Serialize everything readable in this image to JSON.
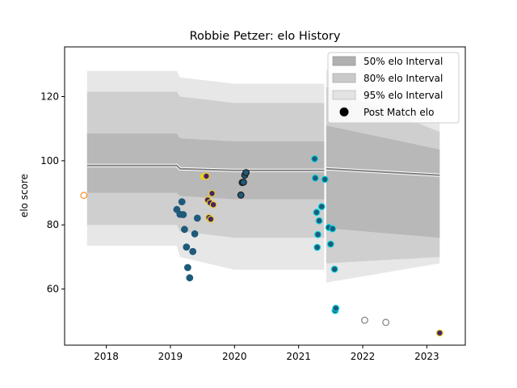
{
  "chart_data": {
    "type": "scatter",
    "title": "Robbie Petzer: elo History",
    "xlabel": "",
    "ylabel": "elo score",
    "xlim": [
      2017.35,
      2023.6
    ],
    "ylim": [
      42.5,
      135.5
    ],
    "xticks": [
      {
        "value": 2018,
        "label": "2018"
      },
      {
        "value": 2019,
        "label": "2019"
      },
      {
        "value": 2020,
        "label": "2020"
      },
      {
        "value": 2021,
        "label": "2021"
      },
      {
        "value": 2022,
        "label": "2022"
      },
      {
        "value": 2023,
        "label": "2023"
      }
    ],
    "yticks": [
      {
        "value": 60,
        "label": "60"
      },
      {
        "value": 80,
        "label": "80"
      },
      {
        "value": 100,
        "label": "100"
      },
      {
        "value": 120,
        "label": "120"
      }
    ],
    "grid": false,
    "legend": {
      "placement": "top-right",
      "entries": [
        {
          "label": "50% elo Interval",
          "color": "#b0b0b0"
        },
        {
          "label": "80% elo Interval",
          "color": "#c9c9c9"
        },
        {
          "label": "95% elo Interval",
          "color": "#e3e3e3"
        },
        {
          "label": "Post Match elo",
          "color": "#000000"
        }
      ]
    },
    "colors": {
      "band_50": "#b0b0b0",
      "band_80": "#c9c9c9",
      "band_95": "#e3e3e3",
      "mean_line": "#808080",
      "point_fill": "#1f5a7a",
      "point_fill_purple": "#4a2466",
      "edge_cyan": "#00d5e0",
      "edge_yellow": "#e8d020",
      "edge_dark": "#1a1a1a",
      "edge_orange": "#ff8c1a",
      "edge_gray": "#808080"
    },
    "band_x": [
      2017.7,
      2019.1,
      2019.15,
      2020.0,
      2021.4,
      2021.43,
      2023.2
    ],
    "band_series": [
      {
        "segment": 1,
        "x": [
          2017.7,
          2019.1,
          2019.15,
          2020.0,
          2021.4
        ],
        "mean": [
          98.5,
          98.5,
          97.5,
          97.0,
          97.0
        ],
        "q50_low": [
          90,
          90,
          89,
          88,
          88
        ],
        "q50_high": [
          108.5,
          108.5,
          107,
          106,
          106
        ],
        "q80_low": [
          80,
          80,
          78,
          76,
          76
        ],
        "q80_high": [
          121.5,
          121.5,
          120,
          118,
          118
        ],
        "q95_low": [
          73.5,
          73.5,
          70,
          66,
          66
        ],
        "q95_high": [
          128,
          128,
          126,
          124,
          124
        ]
      },
      {
        "segment": 2,
        "x": [
          2021.43,
          2023.2
        ],
        "mean": [
          97.5,
          95.5
        ],
        "q50_low": [
          79,
          76
        ],
        "q50_high": [
          111,
          103.5
        ],
        "q80_low": [
          68,
          70
        ],
        "q80_high": [
          123,
          109
        ],
        "q95_low": [
          62,
          68
        ],
        "q95_high": [
          128.5,
          112.5
        ]
      }
    ],
    "points": [
      {
        "x": 2017.65,
        "y": 89.2,
        "fill": "#ffffff",
        "edge": "#ff8c1a"
      },
      {
        "x": 2019.1,
        "y": 84.8,
        "fill": "#1f5a7a",
        "edge": "#1f5a7a"
      },
      {
        "x": 2019.15,
        "y": 83.3,
        "fill": "#1f5a7a",
        "edge": "#1f5a7a"
      },
      {
        "x": 2019.18,
        "y": 87.2,
        "fill": "#1f5a7a",
        "edge": "#1f5a7a"
      },
      {
        "x": 2019.2,
        "y": 83.2,
        "fill": "#1f5a7a",
        "edge": "#1f5a7a"
      },
      {
        "x": 2019.22,
        "y": 78.6,
        "fill": "#1f5a7a",
        "edge": "#1f5a7a"
      },
      {
        "x": 2019.25,
        "y": 73.1,
        "fill": "#1f5a7a",
        "edge": "#1f5a7a"
      },
      {
        "x": 2019.27,
        "y": 66.7,
        "fill": "#1f5a7a",
        "edge": "#1f5a7a"
      },
      {
        "x": 2019.3,
        "y": 63.5,
        "fill": "#1f5a7a",
        "edge": "#1f5a7a"
      },
      {
        "x": 2019.35,
        "y": 71.7,
        "fill": "#1f5a7a",
        "edge": "#1f5a7a"
      },
      {
        "x": 2019.38,
        "y": 77.2,
        "fill": "#1f5a7a",
        "edge": "#1f5a7a"
      },
      {
        "x": 2019.42,
        "y": 82.1,
        "fill": "#1f5a7a",
        "edge": "#1f5a7a"
      },
      {
        "x": 2019.52,
        "y": 95.1,
        "fill": "#e8d020",
        "edge": "#e8d020"
      },
      {
        "x": 2019.56,
        "y": 95.2,
        "fill": "#4a2466",
        "edge": "#e8d020"
      },
      {
        "x": 2019.58,
        "y": 87.8,
        "fill": "#4a2466",
        "edge": "#e8d020"
      },
      {
        "x": 2019.6,
        "y": 82.3,
        "fill": "#4a2466",
        "edge": "#e8d020"
      },
      {
        "x": 2019.62,
        "y": 86.9,
        "fill": "#4a2466",
        "edge": "#e8d020"
      },
      {
        "x": 2019.63,
        "y": 81.8,
        "fill": "#4a2466",
        "edge": "#e8d020"
      },
      {
        "x": 2019.65,
        "y": 89.8,
        "fill": "#4a2466",
        "edge": "#e8d020"
      },
      {
        "x": 2019.67,
        "y": 86.3,
        "fill": "#4a2466",
        "edge": "#e8d020"
      },
      {
        "x": 2020.1,
        "y": 89.3,
        "fill": "#1f5a7a",
        "edge": "#1a1a1a"
      },
      {
        "x": 2020.12,
        "y": 93.2,
        "fill": "#1f5a7a",
        "edge": "#1a1a1a"
      },
      {
        "x": 2020.14,
        "y": 93.3,
        "fill": "#1f5a7a",
        "edge": "#1a1a1a"
      },
      {
        "x": 2020.16,
        "y": 95.5,
        "fill": "#1f5a7a",
        "edge": "#1a1a1a"
      },
      {
        "x": 2020.18,
        "y": 96.3,
        "fill": "#1f5a7a",
        "edge": "#1a1a1a"
      },
      {
        "x": 2021.25,
        "y": 100.6,
        "fill": "#1f5a7a",
        "edge": "#00d5e0"
      },
      {
        "x": 2021.26,
        "y": 94.6,
        "fill": "#1f5a7a",
        "edge": "#00d5e0"
      },
      {
        "x": 2021.28,
        "y": 83.9,
        "fill": "#1f5a7a",
        "edge": "#00d5e0"
      },
      {
        "x": 2021.29,
        "y": 73.0,
        "fill": "#1f5a7a",
        "edge": "#00d5e0"
      },
      {
        "x": 2021.3,
        "y": 77.0,
        "fill": "#1f5a7a",
        "edge": "#00d5e0"
      },
      {
        "x": 2021.32,
        "y": 81.3,
        "fill": "#1f5a7a",
        "edge": "#00d5e0"
      },
      {
        "x": 2021.36,
        "y": 85.7,
        "fill": "#1f5a7a",
        "edge": "#00d5e0"
      },
      {
        "x": 2021.41,
        "y": 94.2,
        "fill": "#1f5a7a",
        "edge": "#00d5e0"
      },
      {
        "x": 2021.47,
        "y": 79.2,
        "fill": "#1f5a7a",
        "edge": "#00d5e0"
      },
      {
        "x": 2021.5,
        "y": 74.0,
        "fill": "#1f5a7a",
        "edge": "#00d5e0"
      },
      {
        "x": 2021.53,
        "y": 78.8,
        "fill": "#1f5a7a",
        "edge": "#00d5e0"
      },
      {
        "x": 2021.56,
        "y": 66.2,
        "fill": "#1f5a7a",
        "edge": "#00d5e0"
      },
      {
        "x": 2021.57,
        "y": 53.3,
        "fill": "#1f5a7a",
        "edge": "#00d5e0"
      },
      {
        "x": 2021.58,
        "y": 54.0,
        "fill": "#1f5a7a",
        "edge": "#00d5e0"
      },
      {
        "x": 2022.03,
        "y": 50.3,
        "fill": "#ffffff",
        "edge": "#808080"
      },
      {
        "x": 2022.36,
        "y": 49.6,
        "fill": "#ffffff",
        "edge": "#808080"
      },
      {
        "x": 2023.2,
        "y": 46.3,
        "fill": "#4a2466",
        "edge": "#e8d020"
      }
    ]
  }
}
